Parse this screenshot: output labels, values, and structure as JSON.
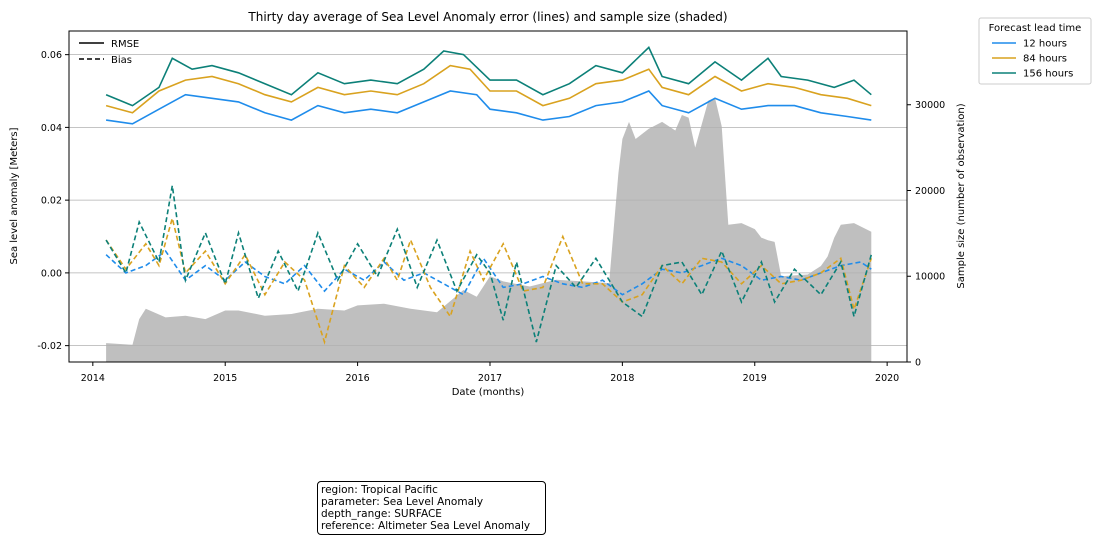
{
  "chart_data": {
    "type": "line",
    "title": "Thirty day average of Sea Level Anomaly error (lines) and sample size (shaded)",
    "xlabel": "Date (months)",
    "ylabel": "Sea level anomaly [Meters]",
    "y2label": "Sample size (number of observation)",
    "xlim": [
      2013.82,
      2020.15
    ],
    "ylim": [
      -0.0245,
      0.0665
    ],
    "y2lim": [
      0,
      38600
    ],
    "xticks": [
      "2014",
      "2015",
      "2016",
      "2017",
      "2018",
      "2019",
      "2020"
    ],
    "xtick_values": [
      2014,
      2015,
      2016,
      2017,
      2018,
      2019,
      2020
    ],
    "yticks": [
      "-0.02",
      "0.00",
      "0.02",
      "0.04",
      "0.06"
    ],
    "ytick_values": [
      -0.02,
      0.0,
      0.02,
      0.04,
      0.06
    ],
    "y2ticks": [
      "0",
      "10000",
      "20000",
      "30000"
    ],
    "y2tick_values": [
      0,
      10000,
      20000,
      30000
    ],
    "grid": "horizontal",
    "style_legend": {
      "entries": [
        {
          "label": "RMSE",
          "dash": "solid"
        },
        {
          "label": "Bias",
          "dash": "dashed"
        }
      ],
      "placement": "top-left"
    },
    "legend": {
      "title": "Forecast lead time",
      "placement": "outside-top-right"
    },
    "series": [
      {
        "name": "12 hours",
        "color": "#1f8ceb",
        "rmse": [
          [
            2014.1,
            0.042
          ],
          [
            2014.3,
            0.041
          ],
          [
            2014.5,
            0.045
          ],
          [
            2014.7,
            0.049
          ],
          [
            2014.9,
            0.048
          ],
          [
            2015.1,
            0.047
          ],
          [
            2015.3,
            0.044
          ],
          [
            2015.5,
            0.042
          ],
          [
            2015.7,
            0.046
          ],
          [
            2015.9,
            0.044
          ],
          [
            2016.1,
            0.045
          ],
          [
            2016.3,
            0.044
          ],
          [
            2016.5,
            0.047
          ],
          [
            2016.7,
            0.05
          ],
          [
            2016.9,
            0.049
          ],
          [
            2017.0,
            0.045
          ],
          [
            2017.2,
            0.044
          ],
          [
            2017.4,
            0.042
          ],
          [
            2017.6,
            0.043
          ],
          [
            2017.8,
            0.046
          ],
          [
            2018.0,
            0.047
          ],
          [
            2018.2,
            0.05
          ],
          [
            2018.3,
            0.046
          ],
          [
            2018.5,
            0.044
          ],
          [
            2018.7,
            0.048
          ],
          [
            2018.9,
            0.045
          ],
          [
            2019.1,
            0.046
          ],
          [
            2019.3,
            0.046
          ],
          [
            2019.5,
            0.044
          ],
          [
            2019.7,
            0.043
          ],
          [
            2019.88,
            0.042
          ]
        ],
        "bias": [
          [
            2014.1,
            0.005
          ],
          [
            2014.25,
            0.0
          ],
          [
            2014.4,
            0.002
          ],
          [
            2014.55,
            0.006
          ],
          [
            2014.7,
            -0.002
          ],
          [
            2014.85,
            0.002
          ],
          [
            2015.0,
            -0.002
          ],
          [
            2015.15,
            0.003
          ],
          [
            2015.3,
            -0.001
          ],
          [
            2015.45,
            -0.003
          ],
          [
            2015.6,
            0.002
          ],
          [
            2015.75,
            -0.005
          ],
          [
            2015.9,
            0.001
          ],
          [
            2016.05,
            -0.002
          ],
          [
            2016.2,
            0.003
          ],
          [
            2016.35,
            -0.002
          ],
          [
            2016.5,
            0.0
          ],
          [
            2016.65,
            -0.003
          ],
          [
            2016.8,
            -0.006
          ],
          [
            2016.95,
            0.004
          ],
          [
            2017.1,
            -0.004
          ],
          [
            2017.25,
            -0.003
          ],
          [
            2017.4,
            -0.001
          ],
          [
            2017.55,
            -0.003
          ],
          [
            2017.7,
            -0.004
          ],
          [
            2017.85,
            -0.002
          ],
          [
            2018.0,
            -0.006
          ],
          [
            2018.15,
            -0.003
          ],
          [
            2018.3,
            0.001
          ],
          [
            2018.45,
            0.0
          ],
          [
            2018.6,
            0.002
          ],
          [
            2018.75,
            0.004
          ],
          [
            2018.9,
            0.002
          ],
          [
            2019.05,
            -0.002
          ],
          [
            2019.2,
            -0.001
          ],
          [
            2019.35,
            -0.002
          ],
          [
            2019.5,
            0.0
          ],
          [
            2019.65,
            0.002
          ],
          [
            2019.8,
            0.003
          ],
          [
            2019.88,
            0.001
          ]
        ]
      },
      {
        "name": "84 hours",
        "color": "#d9a21f",
        "rmse": [
          [
            2014.1,
            0.046
          ],
          [
            2014.3,
            0.044
          ],
          [
            2014.5,
            0.05
          ],
          [
            2014.7,
            0.053
          ],
          [
            2014.9,
            0.054
          ],
          [
            2015.1,
            0.052
          ],
          [
            2015.3,
            0.049
          ],
          [
            2015.5,
            0.047
          ],
          [
            2015.7,
            0.051
          ],
          [
            2015.9,
            0.049
          ],
          [
            2016.1,
            0.05
          ],
          [
            2016.3,
            0.049
          ],
          [
            2016.5,
            0.052
          ],
          [
            2016.7,
            0.057
          ],
          [
            2016.85,
            0.056
          ],
          [
            2017.0,
            0.05
          ],
          [
            2017.2,
            0.05
          ],
          [
            2017.4,
            0.046
          ],
          [
            2017.6,
            0.048
          ],
          [
            2017.8,
            0.052
          ],
          [
            2018.0,
            0.053
          ],
          [
            2018.2,
            0.056
          ],
          [
            2018.3,
            0.051
          ],
          [
            2018.5,
            0.049
          ],
          [
            2018.7,
            0.054
          ],
          [
            2018.9,
            0.05
          ],
          [
            2019.1,
            0.052
          ],
          [
            2019.3,
            0.051
          ],
          [
            2019.5,
            0.049
          ],
          [
            2019.7,
            0.048
          ],
          [
            2019.88,
            0.046
          ]
        ],
        "bias": [
          [
            2014.1,
            0.009
          ],
          [
            2014.25,
            0.001
          ],
          [
            2014.4,
            0.008
          ],
          [
            2014.5,
            0.002
          ],
          [
            2014.6,
            0.015
          ],
          [
            2014.7,
            0.0
          ],
          [
            2014.85,
            0.006
          ],
          [
            2015.0,
            -0.003
          ],
          [
            2015.15,
            0.005
          ],
          [
            2015.3,
            -0.006
          ],
          [
            2015.45,
            0.003
          ],
          [
            2015.6,
            -0.002
          ],
          [
            2015.75,
            -0.019
          ],
          [
            2015.9,
            0.002
          ],
          [
            2016.05,
            -0.004
          ],
          [
            2016.2,
            0.004
          ],
          [
            2016.3,
            -0.002
          ],
          [
            2016.4,
            0.009
          ],
          [
            2016.55,
            -0.004
          ],
          [
            2016.7,
            -0.012
          ],
          [
            2016.85,
            0.006
          ],
          [
            2016.95,
            -0.002
          ],
          [
            2017.1,
            0.008
          ],
          [
            2017.25,
            -0.005
          ],
          [
            2017.4,
            -0.004
          ],
          [
            2017.55,
            0.01
          ],
          [
            2017.7,
            -0.003
          ],
          [
            2017.85,
            -0.003
          ],
          [
            2018.0,
            -0.008
          ],
          [
            2018.15,
            -0.006
          ],
          [
            2018.3,
            0.002
          ],
          [
            2018.45,
            -0.003
          ],
          [
            2018.6,
            0.004
          ],
          [
            2018.75,
            0.003
          ],
          [
            2018.9,
            -0.003
          ],
          [
            2019.05,
            0.002
          ],
          [
            2019.2,
            -0.003
          ],
          [
            2019.35,
            -0.002
          ],
          [
            2019.5,
            0.0
          ],
          [
            2019.65,
            0.004
          ],
          [
            2019.75,
            -0.01
          ],
          [
            2019.88,
            0.004
          ]
        ]
      },
      {
        "name": "156 hours",
        "color": "#0c8078",
        "rmse": [
          [
            2014.1,
            0.049
          ],
          [
            2014.3,
            0.046
          ],
          [
            2014.5,
            0.051
          ],
          [
            2014.6,
            0.059
          ],
          [
            2014.75,
            0.056
          ],
          [
            2014.9,
            0.057
          ],
          [
            2015.1,
            0.055
          ],
          [
            2015.3,
            0.052
          ],
          [
            2015.5,
            0.049
          ],
          [
            2015.7,
            0.055
          ],
          [
            2015.9,
            0.052
          ],
          [
            2016.1,
            0.053
          ],
          [
            2016.3,
            0.052
          ],
          [
            2016.5,
            0.056
          ],
          [
            2016.65,
            0.061
          ],
          [
            2016.8,
            0.06
          ],
          [
            2017.0,
            0.053
          ],
          [
            2017.2,
            0.053
          ],
          [
            2017.4,
            0.049
          ],
          [
            2017.6,
            0.052
          ],
          [
            2017.8,
            0.057
          ],
          [
            2018.0,
            0.055
          ],
          [
            2018.2,
            0.062
          ],
          [
            2018.3,
            0.054
          ],
          [
            2018.5,
            0.052
          ],
          [
            2018.7,
            0.058
          ],
          [
            2018.9,
            0.053
          ],
          [
            2019.1,
            0.059
          ],
          [
            2019.2,
            0.054
          ],
          [
            2019.4,
            0.053
          ],
          [
            2019.6,
            0.051
          ],
          [
            2019.75,
            0.053
          ],
          [
            2019.88,
            0.049
          ]
        ],
        "bias": [
          [
            2014.1,
            0.009
          ],
          [
            2014.25,
            0.0
          ],
          [
            2014.35,
            0.014
          ],
          [
            2014.5,
            0.003
          ],
          [
            2014.6,
            0.024
          ],
          [
            2014.7,
            -0.002
          ],
          [
            2014.85,
            0.011
          ],
          [
            2015.0,
            -0.003
          ],
          [
            2015.1,
            0.011
          ],
          [
            2015.25,
            -0.007
          ],
          [
            2015.4,
            0.006
          ],
          [
            2015.55,
            -0.005
          ],
          [
            2015.7,
            0.011
          ],
          [
            2015.85,
            -0.002
          ],
          [
            2016.0,
            0.008
          ],
          [
            2016.15,
            -0.001
          ],
          [
            2016.3,
            0.012
          ],
          [
            2016.45,
            -0.004
          ],
          [
            2016.6,
            0.009
          ],
          [
            2016.75,
            -0.005
          ],
          [
            2016.9,
            0.005
          ],
          [
            2017.0,
            0.0
          ],
          [
            2017.1,
            -0.013
          ],
          [
            2017.2,
            0.003
          ],
          [
            2017.35,
            -0.019
          ],
          [
            2017.5,
            0.002
          ],
          [
            2017.65,
            -0.004
          ],
          [
            2017.8,
            0.004
          ],
          [
            2018.0,
            -0.008
          ],
          [
            2018.15,
            -0.012
          ],
          [
            2018.3,
            0.002
          ],
          [
            2018.45,
            0.003
          ],
          [
            2018.6,
            -0.006
          ],
          [
            2018.75,
            0.006
          ],
          [
            2018.9,
            -0.008
          ],
          [
            2019.05,
            0.003
          ],
          [
            2019.15,
            -0.008
          ],
          [
            2019.3,
            0.001
          ],
          [
            2019.5,
            -0.006
          ],
          [
            2019.65,
            0.003
          ],
          [
            2019.75,
            -0.012
          ],
          [
            2019.88,
            0.005
          ]
        ]
      }
    ],
    "sample_size": {
      "color": "#bfbfbf",
      "points": [
        [
          2014.1,
          2200
        ],
        [
          2014.3,
          2000
        ],
        [
          2014.35,
          5000
        ],
        [
          2014.4,
          6200
        ],
        [
          2014.55,
          5200
        ],
        [
          2014.7,
          5400
        ],
        [
          2014.85,
          5000
        ],
        [
          2015.0,
          6000
        ],
        [
          2015.1,
          6000
        ],
        [
          2015.3,
          5400
        ],
        [
          2015.5,
          5600
        ],
        [
          2015.7,
          6200
        ],
        [
          2015.9,
          6000
        ],
        [
          2016.0,
          6600
        ],
        [
          2016.2,
          6800
        ],
        [
          2016.4,
          6200
        ],
        [
          2016.6,
          5800
        ],
        [
          2016.8,
          8400
        ],
        [
          2016.9,
          7600
        ],
        [
          2017.0,
          10000
        ],
        [
          2017.1,
          9400
        ],
        [
          2017.3,
          8800
        ],
        [
          2017.5,
          9600
        ],
        [
          2017.7,
          9400
        ],
        [
          2017.9,
          9200
        ],
        [
          2017.97,
          22000
        ],
        [
          2018.0,
          26000
        ],
        [
          2018.05,
          28000
        ],
        [
          2018.1,
          26000
        ],
        [
          2018.2,
          27200
        ],
        [
          2018.3,
          28000
        ],
        [
          2018.4,
          27000
        ],
        [
          2018.45,
          28800
        ],
        [
          2018.5,
          28500
        ],
        [
          2018.55,
          25000
        ],
        [
          2018.65,
          30500
        ],
        [
          2018.7,
          30800
        ],
        [
          2018.75,
          27500
        ],
        [
          2018.8,
          16000
        ],
        [
          2018.9,
          16200
        ],
        [
          2019.0,
          15500
        ],
        [
          2019.05,
          14500
        ],
        [
          2019.1,
          14200
        ],
        [
          2019.15,
          14000
        ],
        [
          2019.2,
          10000
        ],
        [
          2019.4,
          10200
        ],
        [
          2019.5,
          11200
        ],
        [
          2019.55,
          12300
        ],
        [
          2019.6,
          14500
        ],
        [
          2019.65,
          16000
        ],
        [
          2019.75,
          16200
        ],
        [
          2019.88,
          15200
        ]
      ]
    }
  },
  "info_box": {
    "lines": [
      "region: Tropical Pacific",
      "parameter: Sea Level Anomaly",
      "depth_range: SURFACE",
      "reference: Altimeter Sea Level Anomaly"
    ]
  }
}
